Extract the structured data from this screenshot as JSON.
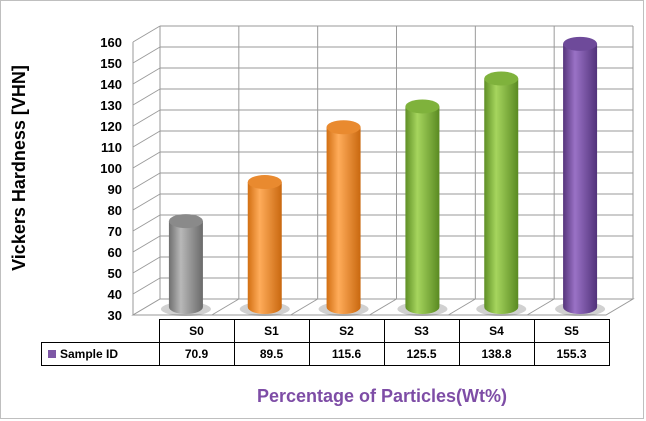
{
  "chart_data": {
    "type": "bar",
    "style": "3d-cylinder",
    "categories": [
      "S0",
      "S1",
      "S2",
      "S3",
      "S4",
      "S5"
    ],
    "series": [
      {
        "name": "Sample ID",
        "values": [
          70.9,
          89.5,
          115.6,
          125.5,
          138.8,
          155.3
        ]
      }
    ],
    "bar_colors": [
      "#9b9b9b",
      "#f5963a",
      "#f5963a",
      "#8cbf46",
      "#8cbf46",
      "#7e58a6"
    ],
    "ylabel": "Vickers Hardness [VHN]",
    "xlabel": "Percentage of Particles(Wt%)",
    "ylim": [
      30,
      160
    ],
    "yticks": [
      30,
      40,
      50,
      60,
      70,
      80,
      90,
      100,
      110,
      120,
      130,
      140,
      150,
      160
    ],
    "grid": true,
    "legend_position": "data-table-left",
    "legend_color": "#7e58a6",
    "xlabel_color": "#7e4da6"
  }
}
